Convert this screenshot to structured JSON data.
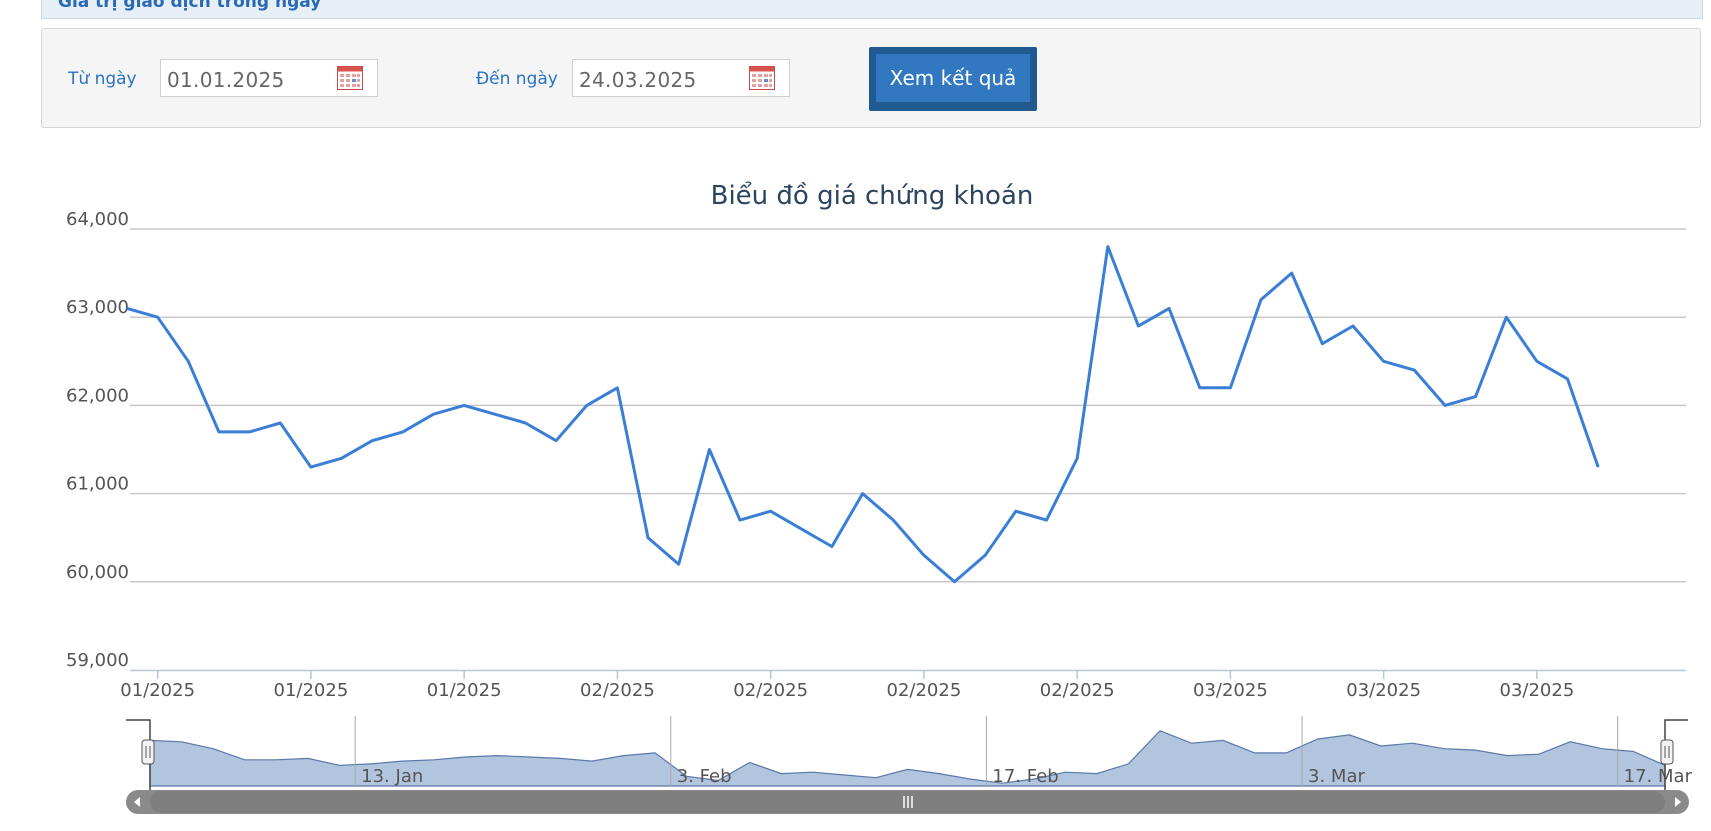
{
  "section": {
    "title": "Giá trị giao dịch trong ngày"
  },
  "filter": {
    "from_label": "Từ ngày",
    "from_value": "01.01.2025",
    "to_label": "Đến ngày",
    "to_value": "24.03.2025",
    "submit_label": "Xem kết quả"
  },
  "icons": {
    "calendar": "calendar-icon"
  },
  "chart_data": {
    "type": "line",
    "title": "Biểu đồ giá chứng khoán",
    "ylim": [
      59000,
      64000
    ],
    "yticks": [
      59000,
      60000,
      61000,
      62000,
      63000,
      64000
    ],
    "ytick_labels": [
      "59,000",
      "60,000",
      "61,000",
      "62,000",
      "63,000",
      "64,000"
    ],
    "xtick_labels": [
      "01/2025",
      "01/2025",
      "01/2025",
      "02/2025",
      "02/2025",
      "02/2025",
      "02/2025",
      "03/2025",
      "03/2025",
      "03/2025"
    ],
    "line_color": "#3a7fd5",
    "navigator_labels": [
      "13. Jan",
      "3. Feb",
      "17. Feb",
      "3. Mar",
      "17. Mar"
    ],
    "series": [
      {
        "values": [
          63100,
          63000,
          62500,
          61700,
          61700,
          61800,
          61300,
          61400,
          61600,
          61700,
          61900,
          62000,
          61900,
          61800,
          61600,
          62000,
          62200,
          60500,
          60200,
          61500,
          60700,
          60800,
          60600,
          60400,
          61000,
          60700,
          60300,
          60000,
          60300,
          60800,
          60700,
          61400,
          63800,
          62900,
          63100,
          62200,
          62200,
          63200,
          63500,
          62700,
          62900,
          62500,
          62400,
          62000,
          62100,
          63000,
          62500,
          62300,
          61300
        ]
      }
    ]
  }
}
